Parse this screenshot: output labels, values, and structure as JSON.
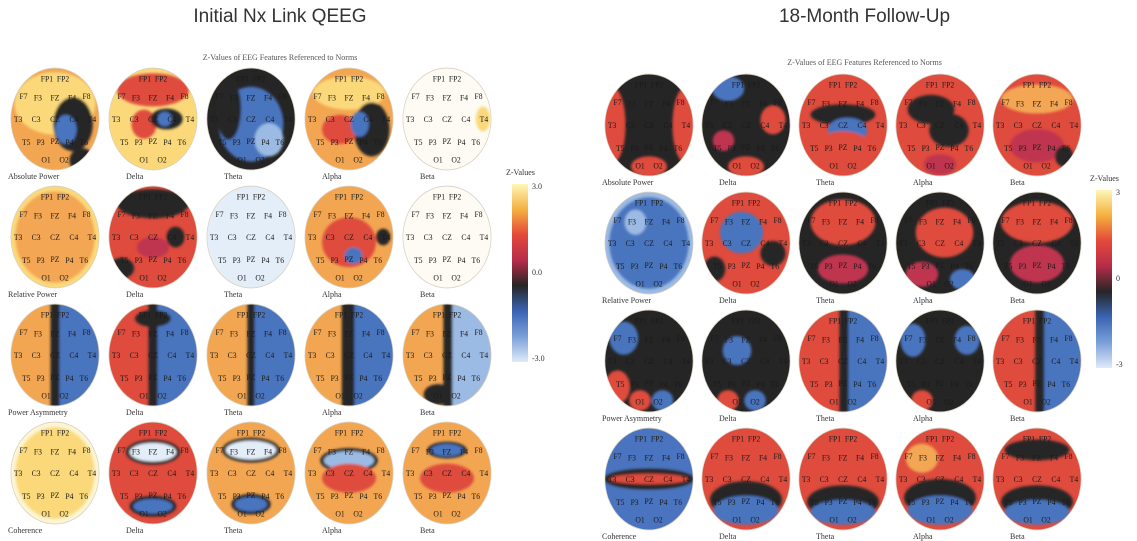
{
  "left": {
    "title": "Initial Nx Link QEEG",
    "subtitle": "Z-Values of EEG Features Referenced to Norms",
    "row_labels": [
      "Absolute Power",
      "Relative Power",
      "Power Asymmetry",
      "Coherence"
    ],
    "column_labels": [
      "",
      "Delta",
      "Theta",
      "Alpha",
      "Beta"
    ],
    "scale": {
      "title": "Z-Values",
      "ticks": [
        "3.0",
        "0.0",
        "-3.0"
      ]
    }
  },
  "right": {
    "title": "18-Month Follow-Up",
    "subtitle": "Z-Values of EEG Features Referenced to Norms",
    "row_labels": [
      "Absolute Power",
      "Relative Power",
      "Power Asymmetry",
      "Coherence"
    ],
    "column_labels": [
      "",
      "Delta",
      "Theta",
      "Alpha",
      "Beta"
    ],
    "scale": {
      "title": "Z-Values",
      "ticks": [
        "3",
        "0",
        "-3"
      ]
    }
  },
  "electrodes": [
    "FP1",
    "FP2",
    "F7",
    "F3",
    "FZ",
    "F4",
    "F8",
    "T3",
    "C3",
    "CZ",
    "C4",
    "T4",
    "T5",
    "P3",
    "PZ",
    "P4",
    "T6",
    "O1",
    "O2"
  ],
  "colors": {
    "scale_stops": [
      "#fdf7b8",
      "#f5b040",
      "#e4483a",
      "#b62c48",
      "#262626",
      "#3a64b4",
      "#7aa0d8",
      "#dfeaf8"
    ]
  }
}
